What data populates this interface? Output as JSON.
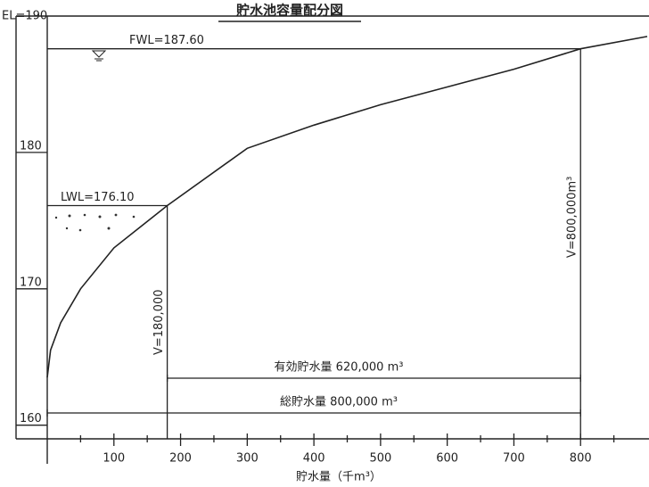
{
  "chart_data": {
    "type": "line",
    "title": "貯水池容量配分図",
    "x_label": "貯水量（千m³）",
    "x": [
      0,
      5,
      20,
      50,
      100,
      180,
      300,
      400,
      500,
      600,
      700,
      800,
      900
    ],
    "series": [
      {
        "color": "#222222",
        "values": [
          163.5,
          165.5,
          167.5,
          170,
          173,
          176.1,
          180.3,
          182,
          183.5,
          184.8,
          186.1,
          187.6,
          188.5
        ]
      }
    ],
    "xlim": [
      0,
      900
    ],
    "xticks": [
      100,
      200,
      300,
      400,
      500,
      600,
      700,
      800
    ],
    "minor_xticks": [
      50,
      150,
      250,
      350,
      450,
      550,
      650,
      750,
      850
    ],
    "ylim": [
      159,
      190
    ],
    "yticks": [
      160,
      170,
      180,
      {
        "value": 190,
        "label": "EL=190"
      }
    ],
    "levels": [
      {
        "label": "FWL=187.60",
        "value": 187.6,
        "x_end": 800
      },
      {
        "label": "LWL=176.10",
        "value": 176.1,
        "x_end": 180
      }
    ],
    "markers": [
      {
        "label": "V=180,000",
        "x": 180
      },
      {
        "label": "V=800,000m³",
        "x": 800
      }
    ],
    "volumes": [
      {
        "label": "有効貯水量 620,000 m³",
        "from": 180,
        "to": 800
      },
      {
        "label": "総貯水量 800,000 m³",
        "from": 0,
        "to": 800
      }
    ]
  }
}
